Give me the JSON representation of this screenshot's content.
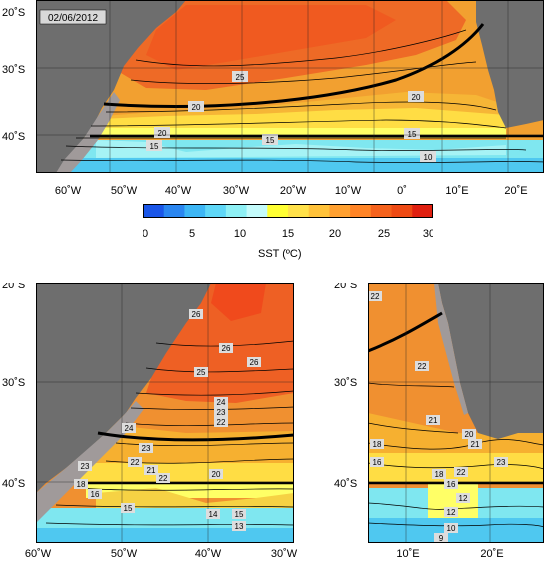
{
  "date_stamp": "02/06/2012",
  "colorbar": {
    "title": "SST (ºC)",
    "ticks": [
      "0",
      "5",
      "10",
      "15",
      "20",
      "25",
      "30"
    ],
    "colors": [
      "#1a56e8",
      "#2a86f0",
      "#3db6f5",
      "#5fd7f7",
      "#8ef0f5",
      "#c4fbfb",
      "#ffff33",
      "#ffe14a",
      "#ffc23a",
      "#ffa030",
      "#ff8426",
      "#f5621c",
      "#ee4a14",
      "#e02010"
    ]
  },
  "panels": {
    "top": {
      "lat_labels": [
        "20˚S",
        "30˚S",
        "40˚S"
      ],
      "lon_labels": [
        "60˚W",
        "50˚W",
        "40˚W",
        "30˚W",
        "20˚W",
        "10˚W",
        "0˚",
        "10˚E",
        "20˚E"
      ],
      "contour_labels": [
        "25",
        "20",
        "20",
        "20",
        "15",
        "15",
        "15",
        "10"
      ]
    },
    "bottom_left": {
      "lat_labels": [
        "20˚S",
        "30˚S",
        "40˚S"
      ],
      "lon_labels": [
        "60˚W",
        "50˚W",
        "40˚W",
        "30˚W"
      ],
      "contour_labels": [
        "26",
        "26",
        "26",
        "25",
        "24",
        "23",
        "22",
        "23",
        "22",
        "21",
        "24",
        "23",
        "22",
        "20",
        "18",
        "16",
        "15",
        "14",
        "13",
        "15"
      ]
    },
    "bottom_right": {
      "lat_labels": [
        "20˚S",
        "30˚S",
        "40˚S"
      ],
      "lon_labels": [
        "10˚E",
        "20˚E"
      ],
      "contour_labels": [
        "22",
        "22",
        "21",
        "20",
        "21",
        "18",
        "16",
        "22",
        "23",
        "18",
        "16",
        "12",
        "10",
        "9",
        "12"
      ]
    }
  },
  "colors": {
    "land": "#6e6e6e",
    "shelf": "#a09a9a",
    "warm": "#f07a2a",
    "front_line": "#000000"
  }
}
